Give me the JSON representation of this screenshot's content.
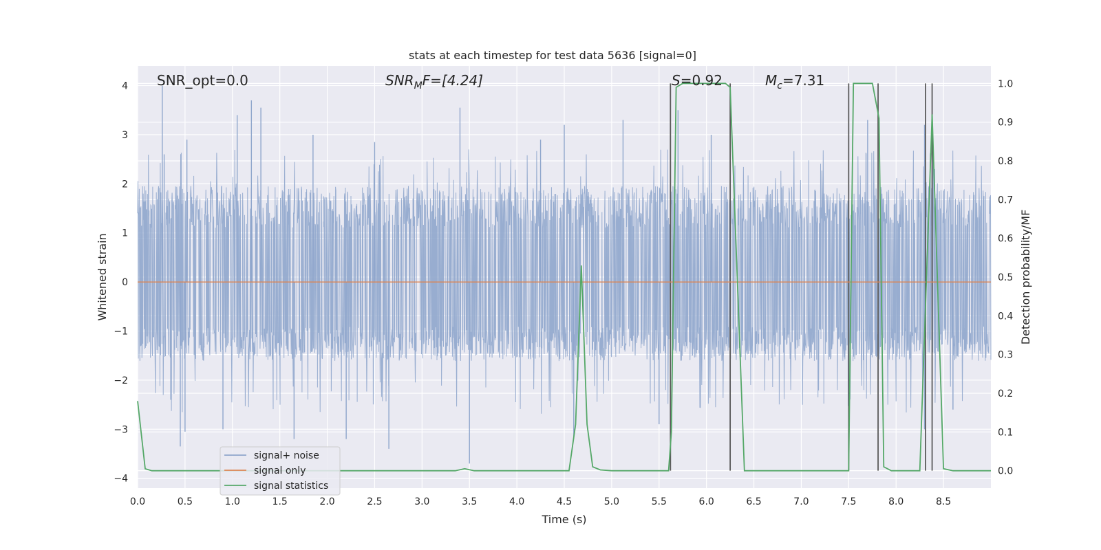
{
  "chart_data": {
    "type": "line",
    "title": "stats at each timestep for test data 5636 [signal=0]",
    "xlabel": "Time (s)",
    "ylabel": "Whitened strain",
    "y2label": "Detection probability/MF",
    "xlim": [
      0,
      9.0
    ],
    "ylim": [
      -4.2,
      4.4
    ],
    "y2lim": [
      -0.045,
      1.045
    ],
    "xticks": [
      "0.0",
      "0.5",
      "1.0",
      "1.5",
      "2.0",
      "2.5",
      "3.0",
      "3.5",
      "4.0",
      "4.5",
      "5.0",
      "5.5",
      "6.0",
      "6.5",
      "7.0",
      "7.5",
      "8.0",
      "8.5"
    ],
    "yticks": [
      "−4",
      "−3",
      "−2",
      "−1",
      "0",
      "1",
      "2",
      "3",
      "4"
    ],
    "y2ticks": [
      "0.0",
      "0.1",
      "0.2",
      "0.3",
      "0.4",
      "0.5",
      "0.6",
      "0.7",
      "0.8",
      "0.9",
      "1.0"
    ],
    "grid": true,
    "legend_position": "lower-left",
    "annotations": {
      "snr_opt": "SNR_opt=0.0",
      "snr_mf_base": "SNR",
      "snr_mf_sub": "M",
      "snr_mf_rest": "F=[4.24]",
      "s_base": "S",
      "s_rest": "=0.92",
      "mc_base": "M",
      "mc_sub": "c",
      "mc_rest": "=7.31"
    },
    "series": [
      {
        "name": "signal+ noise",
        "color": "#8fa6cc",
        "noise_band": [
          -1.4,
          1.7
        ],
        "spikes": [
          [
            0.26,
            4.0
          ],
          [
            0.28,
            2.6
          ],
          [
            0.52,
            2.9
          ],
          [
            1.05,
            3.4
          ],
          [
            1.2,
            3.7
          ],
          [
            1.3,
            3.55
          ],
          [
            1.85,
            3.0
          ],
          [
            2.5,
            2.85
          ],
          [
            3.4,
            3.55
          ],
          [
            4.25,
            2.9
          ],
          [
            4.5,
            3.2
          ],
          [
            5.12,
            3.3
          ],
          [
            5.7,
            3.5
          ],
          [
            6.05,
            3.0
          ],
          [
            7.7,
            3.3
          ],
          [
            8.3,
            3.2
          ],
          [
            8.38,
            3.3
          ],
          [
            0.35,
            -2.4
          ],
          [
            0.45,
            -3.35
          ],
          [
            0.5,
            -3.05
          ],
          [
            0.9,
            -3.0
          ],
          [
            1.65,
            -3.2
          ],
          [
            2.2,
            -3.2
          ],
          [
            2.65,
            -3.4
          ],
          [
            3.5,
            -3.7
          ],
          [
            4.6,
            -3.2
          ],
          [
            5.5,
            -2.9
          ],
          [
            6.25,
            -3.6
          ],
          [
            8.3,
            -3.0
          ],
          [
            8.6,
            -2.6
          ]
        ]
      },
      {
        "name": "signal only",
        "color": "#dd8452",
        "x": [
          0,
          9.0
        ],
        "y": [
          0,
          0
        ]
      },
      {
        "name": "signal statistics",
        "color": "#55a868",
        "axis": "right",
        "x": [
          0.0,
          0.08,
          0.15,
          3.35,
          3.45,
          3.55,
          4.55,
          4.62,
          4.68,
          4.74,
          4.8,
          4.88,
          5.0,
          5.6,
          5.63,
          5.68,
          5.75,
          6.2,
          6.25,
          6.4,
          7.5,
          7.55,
          7.75,
          7.82,
          7.87,
          7.95,
          8.25,
          8.38,
          8.5,
          8.6,
          9.0
        ],
        "y": [
          0.18,
          0.005,
          0.0,
          0.0,
          0.005,
          0.0,
          0.0,
          0.12,
          0.53,
          0.12,
          0.01,
          0.002,
          0.0,
          0.0,
          0.1,
          0.99,
          1.0,
          1.0,
          0.99,
          0.0,
          0.0,
          1.0,
          1.0,
          0.91,
          0.01,
          0.0,
          0.0,
          0.92,
          0.005,
          0.0,
          0.0
        ]
      }
    ],
    "vertical_markers": [
      5.62,
      6.25,
      7.5,
      7.81,
      8.31,
      8.38
    ]
  }
}
